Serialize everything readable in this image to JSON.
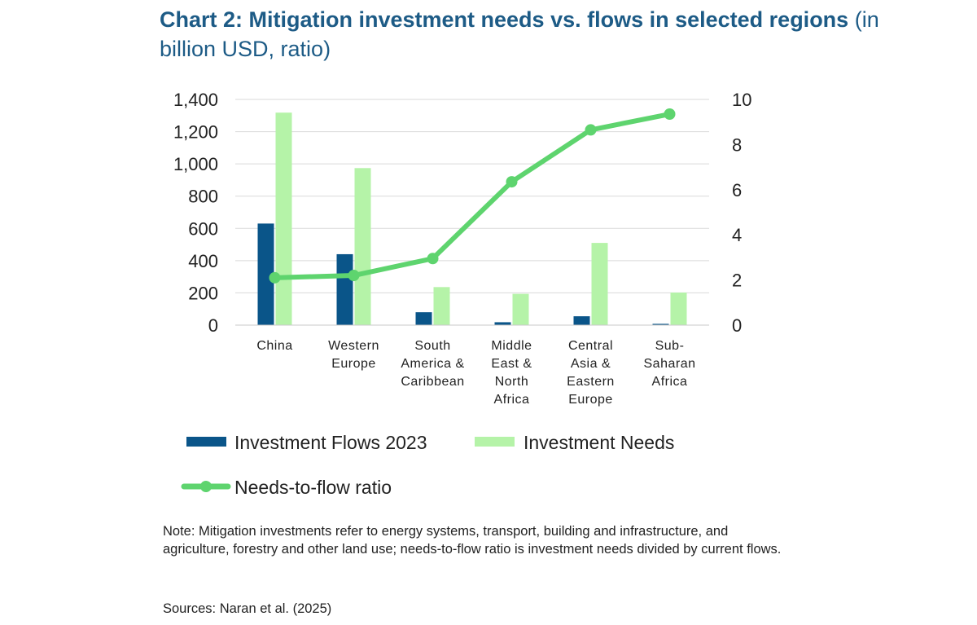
{
  "title_bold": "Chart 2: Mitigation investment needs vs. flows in selected regions",
  "title_light": "(in billion USD, ratio)",
  "note": "Note: Mitigation investments refer to energy systems, transport, building and infrastructure, and agriculture, forestry and other land use; needs-to-flow ratio is investment needs divided by current flows.",
  "sources": "Sources: Naran et al. (2025)",
  "colors": {
    "flows": "#0a5589",
    "needs": "#b5f3a8",
    "ratio": "#5ed46e",
    "grid": "#d9d9d9",
    "title": "#1d5b86"
  },
  "chart_data": {
    "type": "bar",
    "categories": [
      [
        "China"
      ],
      [
        "Western",
        "Europe"
      ],
      [
        "South",
        "America &",
        "Caribbean"
      ],
      [
        "Middle",
        "East &",
        "North",
        "Africa"
      ],
      [
        "Central",
        "Asia &",
        "Eastern",
        "Europe"
      ],
      [
        "Sub-",
        "Saharan",
        "Africa"
      ]
    ],
    "series": [
      {
        "name": "Investment Flows 2023",
        "kind": "bar",
        "axis": "left",
        "values": [
          630,
          440,
          80,
          18,
          55,
          8
        ]
      },
      {
        "name": "Investment Needs",
        "kind": "bar",
        "axis": "left",
        "values": [
          1318,
          974,
          236,
          194,
          510,
          202
        ]
      },
      {
        "name": "Needs-to-flow ratio",
        "kind": "line",
        "axis": "right",
        "values": [
          2.1,
          2.2,
          2.95,
          6.35,
          8.65,
          9.35
        ]
      }
    ],
    "y_left": {
      "min": 0,
      "max": 1400,
      "ticks": [
        "0",
        "200",
        "400",
        "600",
        "800",
        "1,000",
        "1,200",
        "1,400"
      ]
    },
    "y_right": {
      "min": 0,
      "max": 10,
      "ticks": [
        "0",
        "2",
        "4",
        "6",
        "8",
        "10"
      ]
    },
    "grid": true,
    "legend_position": "bottom"
  }
}
